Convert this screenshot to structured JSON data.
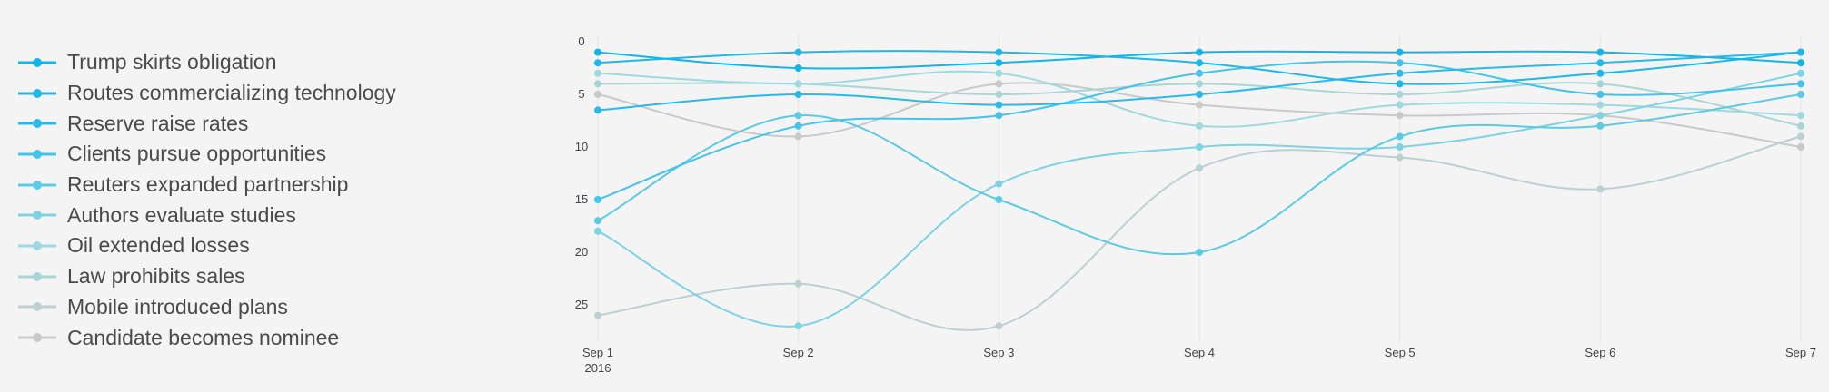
{
  "chart_data": {
    "type": "line",
    "title": "",
    "xlabel": "",
    "ylabel": "",
    "x": [
      "Sep 1",
      "Sep 2",
      "Sep 3",
      "Sep 4",
      "Sep 5",
      "Sep 6",
      "Sep 7"
    ],
    "x_year_label": "2016",
    "y_ticks": [
      0,
      5,
      10,
      15,
      20,
      25
    ],
    "ylim": [
      0,
      28
    ],
    "y_reversed": true,
    "grid": "vertical",
    "legend_position": "left",
    "series": [
      {
        "name": "Trump skirts obligation",
        "color": "#12b5ea",
        "values": [
          1,
          2.5,
          2,
          1,
          1,
          1,
          2
        ]
      },
      {
        "name": "Routes commercializing technology",
        "color": "#1fb7e8",
        "values": [
          2,
          1,
          1,
          2,
          4,
          3,
          1
        ]
      },
      {
        "name": "Reserve raise rates",
        "color": "#2ab9e8",
        "values": [
          6.5,
          5,
          6,
          5,
          3,
          2,
          1
        ]
      },
      {
        "name": "Clients pursue opportunities",
        "color": "#47c2e8",
        "values": [
          15,
          8,
          7,
          3,
          2,
          5,
          4
        ]
      },
      {
        "name": "Reuters expanded partnership",
        "color": "#5ccbe2",
        "values": [
          17,
          7,
          15,
          20,
          9,
          8,
          5
        ]
      },
      {
        "name": "Authors evaluate studies",
        "color": "#7dd3e2",
        "values": [
          18,
          27,
          13.5,
          10,
          10,
          7,
          3
        ]
      },
      {
        "name": "Oil extended losses",
        "color": "#9fd9df",
        "values": [
          3,
          4,
          3,
          8,
          6,
          6,
          7
        ]
      },
      {
        "name": "Law prohibits sales",
        "color": "#a8d6d6",
        "values": [
          4,
          4,
          5,
          4,
          5,
          4,
          8
        ]
      },
      {
        "name": "Mobile introduced plans",
        "color": "#bbd0d0",
        "values": [
          26,
          23,
          27,
          12,
          11,
          14,
          9
        ]
      },
      {
        "name": "Candidate becomes nominee",
        "color": "#c9c9c9",
        "values": [
          5,
          9,
          4,
          6,
          7,
          7,
          10
        ]
      }
    ]
  }
}
